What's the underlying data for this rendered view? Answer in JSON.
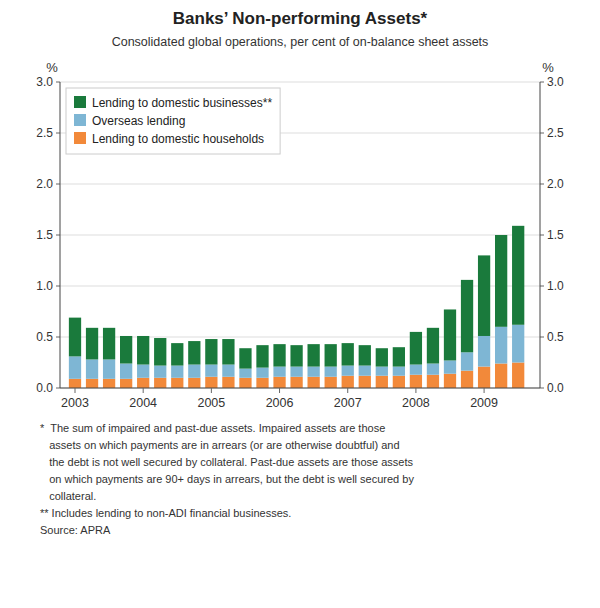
{
  "chart_data": {
    "type": "bar",
    "stacked": true,
    "title": "Banks’ Non-performing Assets*",
    "subtitle": "Consolidated global operations, per cent of on-balance sheet assets",
    "ylabel": "%",
    "y2label": "%",
    "x": [
      2003.0,
      2003.25,
      2003.5,
      2003.75,
      2004.0,
      2004.25,
      2004.5,
      2004.75,
      2005.0,
      2005.25,
      2005.5,
      2005.75,
      2006.0,
      2006.25,
      2006.5,
      2006.75,
      2007.0,
      2007.25,
      2007.5,
      2007.75,
      2008.0,
      2008.25,
      2008.5,
      2008.75,
      2009.0,
      2009.25,
      2009.5
    ],
    "series": [
      {
        "name": "Lending to domestic households",
        "color": "#f2893a",
        "values": [
          0.09,
          0.09,
          0.09,
          0.09,
          0.1,
          0.1,
          0.1,
          0.1,
          0.11,
          0.11,
          0.1,
          0.1,
          0.11,
          0.11,
          0.11,
          0.11,
          0.12,
          0.12,
          0.12,
          0.12,
          0.13,
          0.13,
          0.14,
          0.17,
          0.21,
          0.24,
          0.25
        ]
      },
      {
        "name": "Overseas lending",
        "color": "#7eb6d4",
        "values": [
          0.22,
          0.19,
          0.19,
          0.15,
          0.13,
          0.12,
          0.12,
          0.13,
          0.12,
          0.12,
          0.09,
          0.1,
          0.1,
          0.1,
          0.1,
          0.1,
          0.1,
          0.1,
          0.09,
          0.09,
          0.1,
          0.11,
          0.13,
          0.18,
          0.3,
          0.36,
          0.37
        ]
      },
      {
        "name": "Lending to domestic businesses**",
        "color": "#1a7a3c",
        "values": [
          0.38,
          0.31,
          0.31,
          0.27,
          0.28,
          0.27,
          0.22,
          0.23,
          0.25,
          0.25,
          0.2,
          0.22,
          0.22,
          0.21,
          0.22,
          0.22,
          0.22,
          0.2,
          0.18,
          0.19,
          0.32,
          0.35,
          0.5,
          0.71,
          0.79,
          0.9,
          0.97
        ]
      }
    ],
    "xlim": [
      2002.78,
      2009.82
    ],
    "xticks": [
      2003,
      2004,
      2005,
      2006,
      2007,
      2008,
      2009
    ],
    "ylim": [
      0.0,
      3.0
    ],
    "yticks": [
      {
        "value": 0.0,
        "label": "0.0"
      },
      0.5,
      {
        "value": 1.0,
        "label": "1.0"
      },
      1.5,
      {
        "value": 2.0,
        "label": "2.0"
      },
      2.5,
      {
        "value": 3.0,
        "label": "3.0"
      }
    ],
    "y2lim": [
      0.0,
      3.0
    ],
    "y2ticks": [
      {
        "value": 0.0,
        "label": "0.0"
      },
      0.5,
      {
        "value": 1.0,
        "label": "1.0"
      },
      1.5,
      {
        "value": 2.0,
        "label": "2.0"
      },
      2.5,
      {
        "value": 3.0,
        "label": "3.0"
      }
    ],
    "grid": true,
    "legend": "upper left",
    "footnotes": [
      "*  The sum of impaired and past-due assets. Impaired assets are those",
      "   assets on which payments are in arrears (or are otherwise doubtful) and",
      "   the debt is not well secured by collateral. Past-due assets are those assets",
      "   on which payments are 90+ days in arrears, but the debt is well secured by",
      "   collateral.",
      "** Includes lending to non-ADI financial businesses.",
      "Source: APRA"
    ]
  }
}
